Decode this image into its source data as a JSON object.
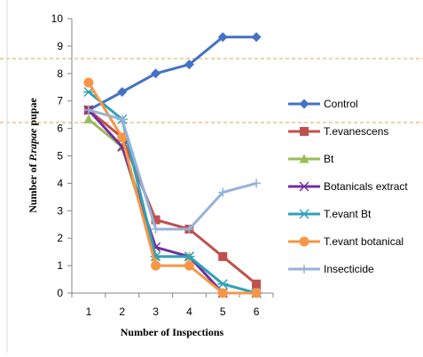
{
  "chart_data": {
    "type": "line",
    "title": "",
    "xlabel": "Number of Inspections",
    "ylabel_prefix": "Number of ",
    "ylabel_italic": "P.rapae",
    "ylabel_suffix": " pupae",
    "x": [
      1,
      2,
      3,
      4,
      5,
      6
    ],
    "ylim": [
      0,
      10
    ],
    "yticks": [
      0,
      1,
      2,
      3,
      4,
      5,
      6,
      7,
      8,
      9,
      10
    ],
    "grid": false,
    "legend_position": "right",
    "series": [
      {
        "name": "Control",
        "values": [
          6.67,
          7.33,
          8.0,
          8.33,
          9.33,
          9.33
        ],
        "color": "#4472C4",
        "marker": "diamond"
      },
      {
        "name": "T.evanescens",
        "values": [
          6.67,
          5.67,
          2.67,
          2.33,
          1.33,
          0.33
        ],
        "color": "#C0504D",
        "marker": "square"
      },
      {
        "name": "Bt",
        "values": [
          6.33,
          5.33,
          1.33,
          1.33,
          0.0,
          0.0
        ],
        "color": "#9BBB59",
        "marker": "triangle"
      },
      {
        "name": "Botanicals extract",
        "values": [
          6.67,
          5.33,
          1.67,
          1.33,
          0.0,
          0.0
        ],
        "color": "#7030A0",
        "marker": "x"
      },
      {
        "name": "T.evant Bt",
        "values": [
          7.33,
          6.33,
          1.33,
          1.33,
          0.33,
          0.0
        ],
        "color": "#31A1B8",
        "marker": "asterisk"
      },
      {
        "name": "T.evant botanical",
        "values": [
          7.67,
          5.67,
          1.0,
          1.0,
          0.0,
          0.0
        ],
        "color": "#F79646",
        "marker": "circle"
      },
      {
        "name": "Insecticide",
        "values": [
          6.67,
          6.33,
          2.33,
          2.33,
          3.67,
          4.0
        ],
        "color": "#95B3D7",
        "marker": "plus"
      }
    ]
  }
}
